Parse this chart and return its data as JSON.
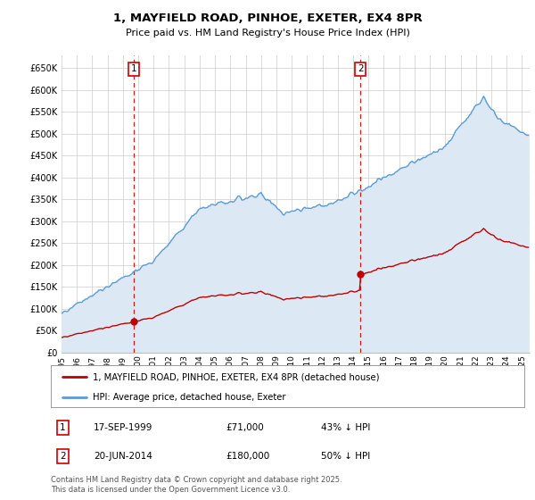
{
  "title": "1, MAYFIELD ROAD, PINHOE, EXETER, EX4 8PR",
  "subtitle": "Price paid vs. HM Land Registry's House Price Index (HPI)",
  "ylim": [
    0,
    680000
  ],
  "yticks": [
    0,
    50000,
    100000,
    150000,
    200000,
    250000,
    300000,
    350000,
    400000,
    450000,
    500000,
    550000,
    600000,
    650000
  ],
  "background_color": "#ffffff",
  "grid_color": "#cccccc",
  "hpi_color": "#5b9bd5",
  "hpi_fill_color": "#dce9f5",
  "price_color": "#c00000",
  "vline_color": "#cc0000",
  "purchases": [
    {
      "date_num": 1999.72,
      "price": 71000,
      "label": "1",
      "hpi_pct": "43% ↓ HPI",
      "date_str": "17-SEP-1999"
    },
    {
      "date_num": 2014.47,
      "price": 180000,
      "label": "2",
      "hpi_pct": "50% ↓ HPI",
      "date_str": "20-JUN-2014"
    }
  ],
  "legend_entries": [
    "1, MAYFIELD ROAD, PINHOE, EXETER, EX4 8PR (detached house)",
    "HPI: Average price, detached house, Exeter"
  ],
  "footnote": "Contains HM Land Registry data © Crown copyright and database right 2025.\nThis data is licensed under the Open Government Licence v3.0.",
  "xlim_left": 1995.0,
  "xlim_right": 2025.5,
  "xtick_years": [
    1995,
    1996,
    1997,
    1998,
    1999,
    2000,
    2001,
    2002,
    2003,
    2004,
    2005,
    2006,
    2007,
    2008,
    2009,
    2010,
    2011,
    2012,
    2013,
    2014,
    2015,
    2016,
    2017,
    2018,
    2019,
    2020,
    2021,
    2022,
    2023,
    2024,
    2025
  ]
}
